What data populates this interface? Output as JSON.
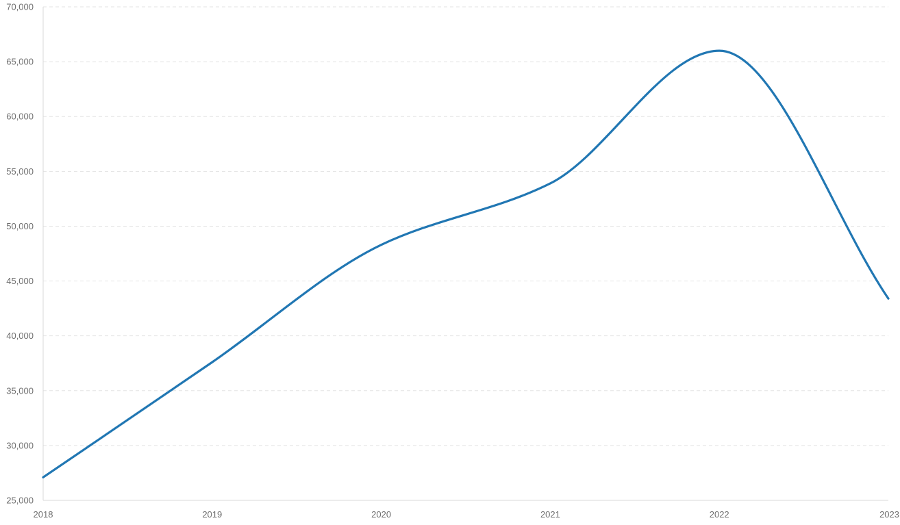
{
  "chart_data": {
    "type": "line",
    "title": "",
    "xlabel": "",
    "ylabel": "",
    "x": [
      "2018",
      "2019",
      "2020",
      "2021",
      "2022",
      "2023"
    ],
    "series": [
      {
        "values": [
          27100,
          37600,
          48300,
          53900,
          66000,
          43400
        ],
        "color": "#2177b3"
      }
    ],
    "ylim": [
      25000,
      70000
    ],
    "yticks": [
      25000,
      30000,
      35000,
      40000,
      45000,
      50000,
      55000,
      60000,
      65000,
      70000
    ],
    "ytick_labels": [
      "25,000",
      "30,000",
      "35,000",
      "40,000",
      "45,000",
      "50,000",
      "55,000",
      "60,000",
      "65,000",
      "70,000"
    ],
    "xtick_labels": [
      "2018",
      "2019",
      "2020",
      "2021",
      "2022",
      "2023"
    ],
    "grid": "horizontal dashed",
    "smooth": true,
    "legend": "none"
  }
}
